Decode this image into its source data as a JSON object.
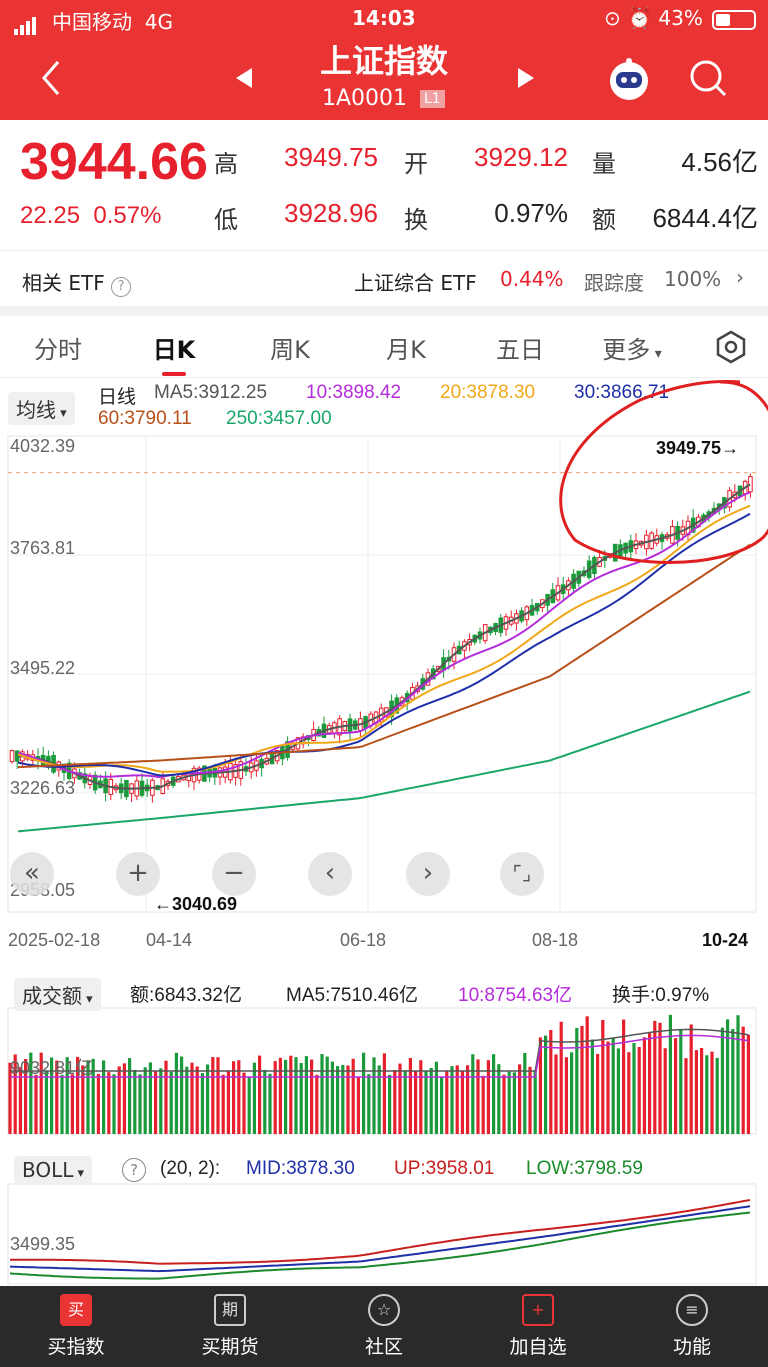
{
  "status": {
    "carrier": "中国移动",
    "net": "4G",
    "time": "14:03",
    "battery": "43%"
  },
  "header": {
    "title": "上证指数",
    "code": "1A0001",
    "level": "L1"
  },
  "quote": {
    "price": "3944.66",
    "change": "22.25",
    "change_pct": "0.57%",
    "high_label": "高",
    "high": "3949.75",
    "open_label": "开",
    "open": "3929.12",
    "vol_label": "量",
    "volume": "4.56亿",
    "low_label": "低",
    "low": "3928.96",
    "turn_label": "换",
    "turnover_rate": "0.97%",
    "amt_label": "额",
    "amount": "6844.4亿"
  },
  "etf": {
    "label": "相关 ETF",
    "name": "上证综合 ETF",
    "pct": "0.44%",
    "track_label": "跟踪度",
    "track": "100%"
  },
  "tabs": [
    "分时",
    "日K",
    "周K",
    "月K",
    "五日",
    "更多"
  ],
  "ma_legend": {
    "chip": "均线",
    "period": "日线",
    "ma5": "MA5:3912.25",
    "ma10": "10:3898.42",
    "ma20": "20:3878.30",
    "ma30": "30:3866.71",
    "ma60": "60:3790.11",
    "ma250": "250:3457.00"
  },
  "main_axis": {
    "ticks": [
      "4032.39",
      "3763.81",
      "3495.22",
      "3226.63",
      "2958.05"
    ],
    "high_mark": "3949.75",
    "low_mark": "3040.69"
  },
  "dates": [
    "2025-02-18",
    "04-14",
    "06-18",
    "08-18",
    "10-24"
  ],
  "vol_legend": {
    "chip": "成交额",
    "amount": "额:6843.32亿",
    "ma5": "MA5:7510.46亿",
    "ma10": "10:8754.63亿",
    "turnover": "换手:0.97%",
    "axis": "9032.81亿"
  },
  "boll_legend": {
    "chip": "BOLL",
    "params": "(20, 2):",
    "mid": "MID:3878.30",
    "up": "UP:3958.01",
    "low": "LOW:3798.59",
    "axis": "3499.35"
  },
  "bottom_nav": [
    "买指数",
    "买期货",
    "社区",
    "加自选",
    "功能"
  ],
  "bottom_icons": [
    "买",
    "期",
    "☆",
    "+",
    "≡"
  ],
  "colors": {
    "brand": "#ea3434",
    "up": "#e6202c",
    "down": "#1a9a3b",
    "ma5": "#555555",
    "ma10": "#b42cdb",
    "ma20": "#f0a818",
    "ma30": "#1f2fa8",
    "ma60": "#b8501a",
    "ma250": "#1aa86a"
  },
  "chart_data": {
    "type": "line",
    "title": "",
    "x_range": [
      "2025-02-18",
      "10-24"
    ],
    "ylim": [
      2958.05,
      4032.39
    ],
    "series": [
      {
        "name": "MA5",
        "x": [
          "2025-02-18",
          "04-14",
          "06-18",
          "08-18",
          "10-24"
        ],
        "values": [
          3300,
          3230,
          3380,
          3680,
          3912.25
        ]
      },
      {
        "name": "10",
        "x": [
          "2025-02-18",
          "04-14",
          "06-18",
          "08-18",
          "10-24"
        ],
        "values": [
          3305,
          3250,
          3375,
          3640,
          3898.42
        ]
      },
      {
        "name": "20",
        "x": [
          "2025-02-18",
          "04-14",
          "06-18",
          "08-18",
          "10-24"
        ],
        "values": [
          3310,
          3270,
          3360,
          3600,
          3878.3
        ]
      },
      {
        "name": "30",
        "x": [
          "2025-02-18",
          "04-14",
          "06-18",
          "08-18",
          "10-24"
        ],
        "values": [
          3300,
          3270,
          3345,
          3570,
          3866.71
        ]
      },
      {
        "name": "60",
        "x": [
          "2025-02-18",
          "04-14",
          "06-18",
          "08-18",
          "10-24"
        ],
        "values": [
          3285,
          3300,
          3330,
          3490,
          3790.11
        ]
      },
      {
        "name": "250",
        "x": [
          "2025-02-18",
          "04-14",
          "06-18",
          "08-18",
          "10-24"
        ],
        "values": [
          3140,
          3170,
          3215,
          3300,
          3457.0
        ]
      }
    ]
  }
}
